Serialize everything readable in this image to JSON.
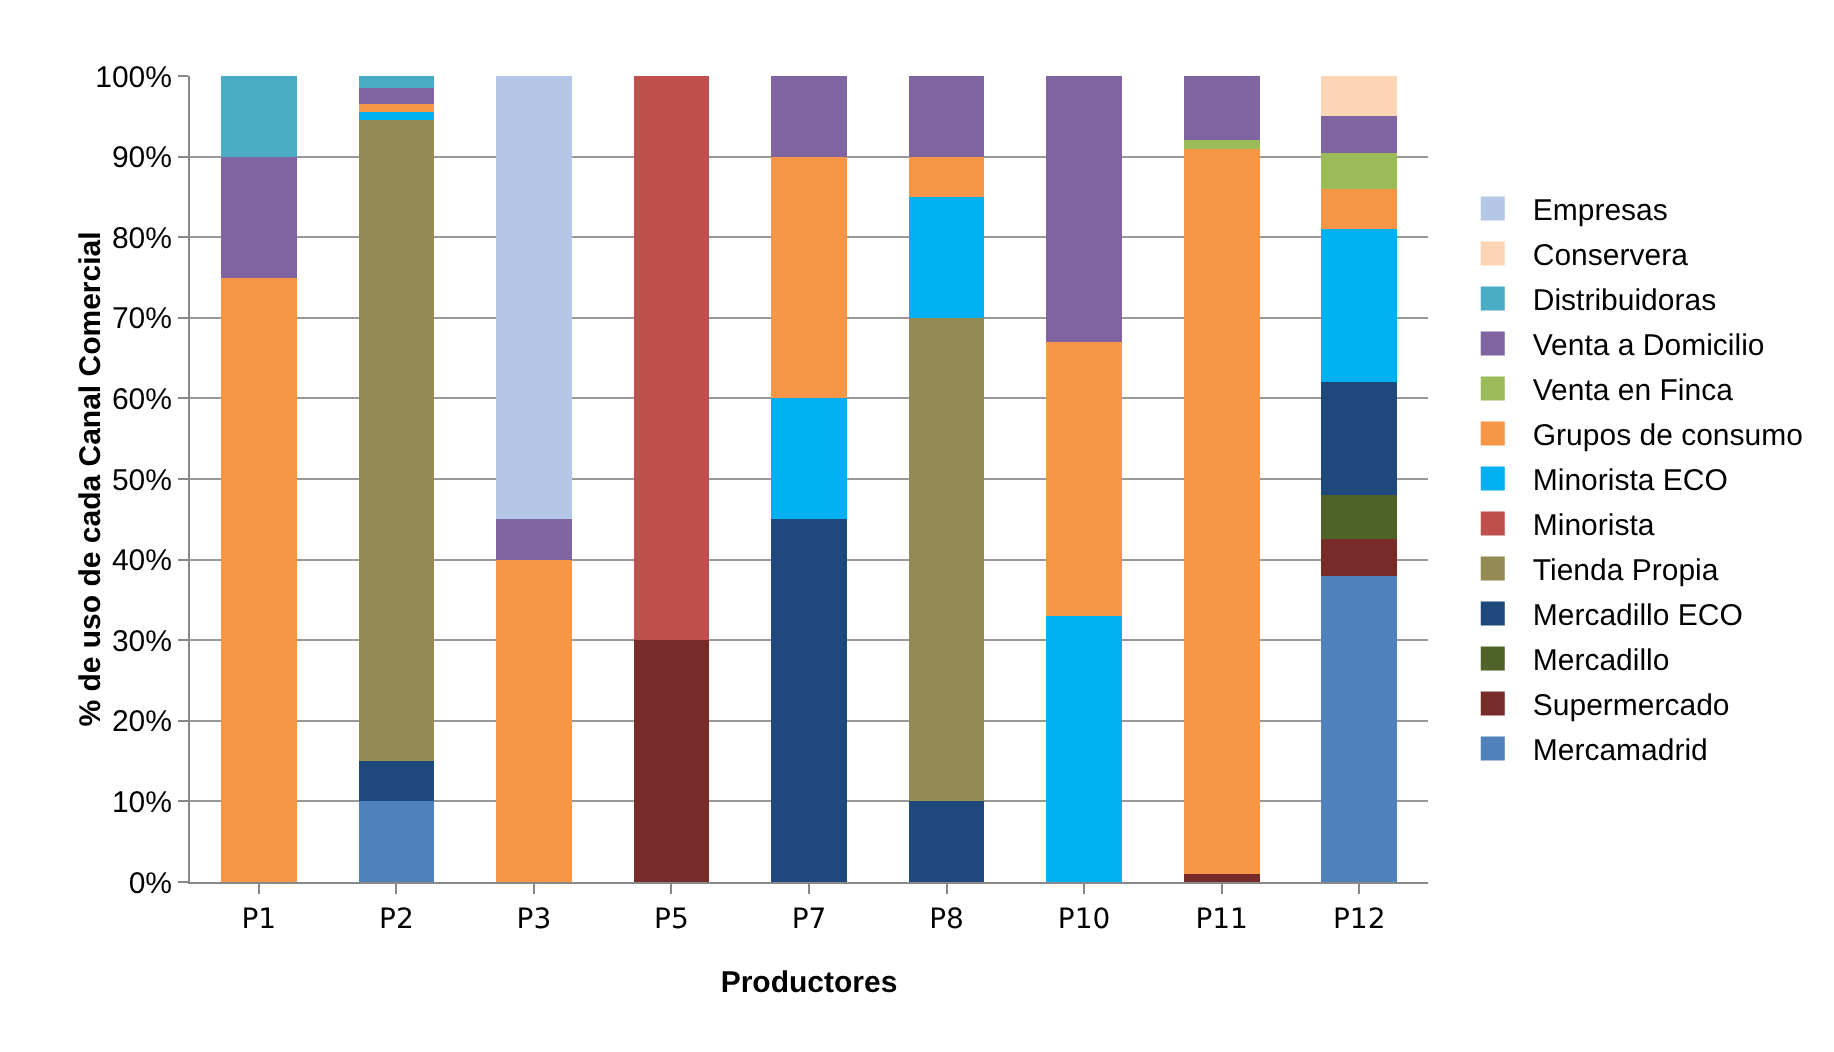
{
  "chart_data": {
    "type": "bar",
    "stacked": true,
    "xlabel": "Productores",
    "ylabel": "% de uso de cada Canal Comercial",
    "categories": [
      "P1",
      "P2",
      "P3",
      "P5",
      "P7",
      "P8",
      "P10",
      "P11",
      "P12"
    ],
    "ylim": [
      0,
      100
    ],
    "yticks": [
      {
        "value": 0,
        "label": "0%"
      },
      {
        "value": 10,
        "label": "10%"
      },
      {
        "value": 20,
        "label": "20%"
      },
      {
        "value": 30,
        "label": "30%"
      },
      {
        "value": 40,
        "label": "40%"
      },
      {
        "value": 50,
        "label": "50%"
      },
      {
        "value": 60,
        "label": "60%"
      },
      {
        "value": 70,
        "label": "70%"
      },
      {
        "value": 80,
        "label": "80%"
      },
      {
        "value": 90,
        "label": "90%"
      },
      {
        "value": 100,
        "label": "100%"
      }
    ],
    "grid": "y",
    "legend": "right",
    "series": [
      {
        "name": "Mercamadrid",
        "color": "#4f81bd",
        "values": [
          0,
          10,
          0,
          0,
          0,
          0,
          0,
          0,
          38
        ]
      },
      {
        "name": "Supermercado",
        "color": "#772c2a",
        "values": [
          0,
          0,
          0,
          30,
          0,
          0,
          0,
          1,
          4.5
        ]
      },
      {
        "name": "Mercadillo",
        "color": "#4f6228",
        "values": [
          0,
          0,
          0,
          0,
          0,
          0,
          0,
          0,
          5.5
        ]
      },
      {
        "name": "Mercadillo ECO",
        "color": "#1f497d",
        "values": [
          0,
          5,
          0,
          0,
          45,
          10,
          0,
          0,
          14
        ]
      },
      {
        "name": "Tienda Propia",
        "color": "#948a54",
        "values": [
          0,
          79.5,
          0,
          0,
          0,
          60,
          0,
          0,
          0
        ]
      },
      {
        "name": "Minorista",
        "color": "#c0504d",
        "values": [
          0,
          0,
          0,
          70,
          0,
          0,
          0,
          0,
          0
        ]
      },
      {
        "name": "Minorista ECO",
        "color": "#00b0f0",
        "values": [
          0,
          1,
          0,
          0,
          15,
          15,
          33,
          0,
          19
        ]
      },
      {
        "name": "Grupos de consumo",
        "color": "#f79646",
        "values": [
          75,
          1,
          40,
          0,
          30,
          5,
          34,
          90,
          5
        ]
      },
      {
        "name": "Venta en Finca",
        "color": "#9bbb59",
        "values": [
          0,
          0,
          0,
          0,
          0,
          0,
          0,
          1,
          4.5
        ]
      },
      {
        "name": "Venta a Domicilio",
        "color": "#8064a2",
        "values": [
          15,
          2,
          5,
          0,
          10,
          10,
          33,
          8,
          4.5
        ]
      },
      {
        "name": "Distribuidoras",
        "color": "#4bacc6",
        "values": [
          10,
          1.5,
          0,
          0,
          0,
          0,
          0,
          0,
          0
        ]
      },
      {
        "name": "Conservera",
        "color": "#fcd5b5",
        "values": [
          0,
          0,
          0,
          0,
          0,
          0,
          0,
          0,
          5
        ]
      },
      {
        "name": "Empresas",
        "color": "#b4c7e7",
        "values": [
          0,
          0,
          55,
          0,
          0,
          0,
          0,
          0,
          0
        ]
      }
    ]
  }
}
